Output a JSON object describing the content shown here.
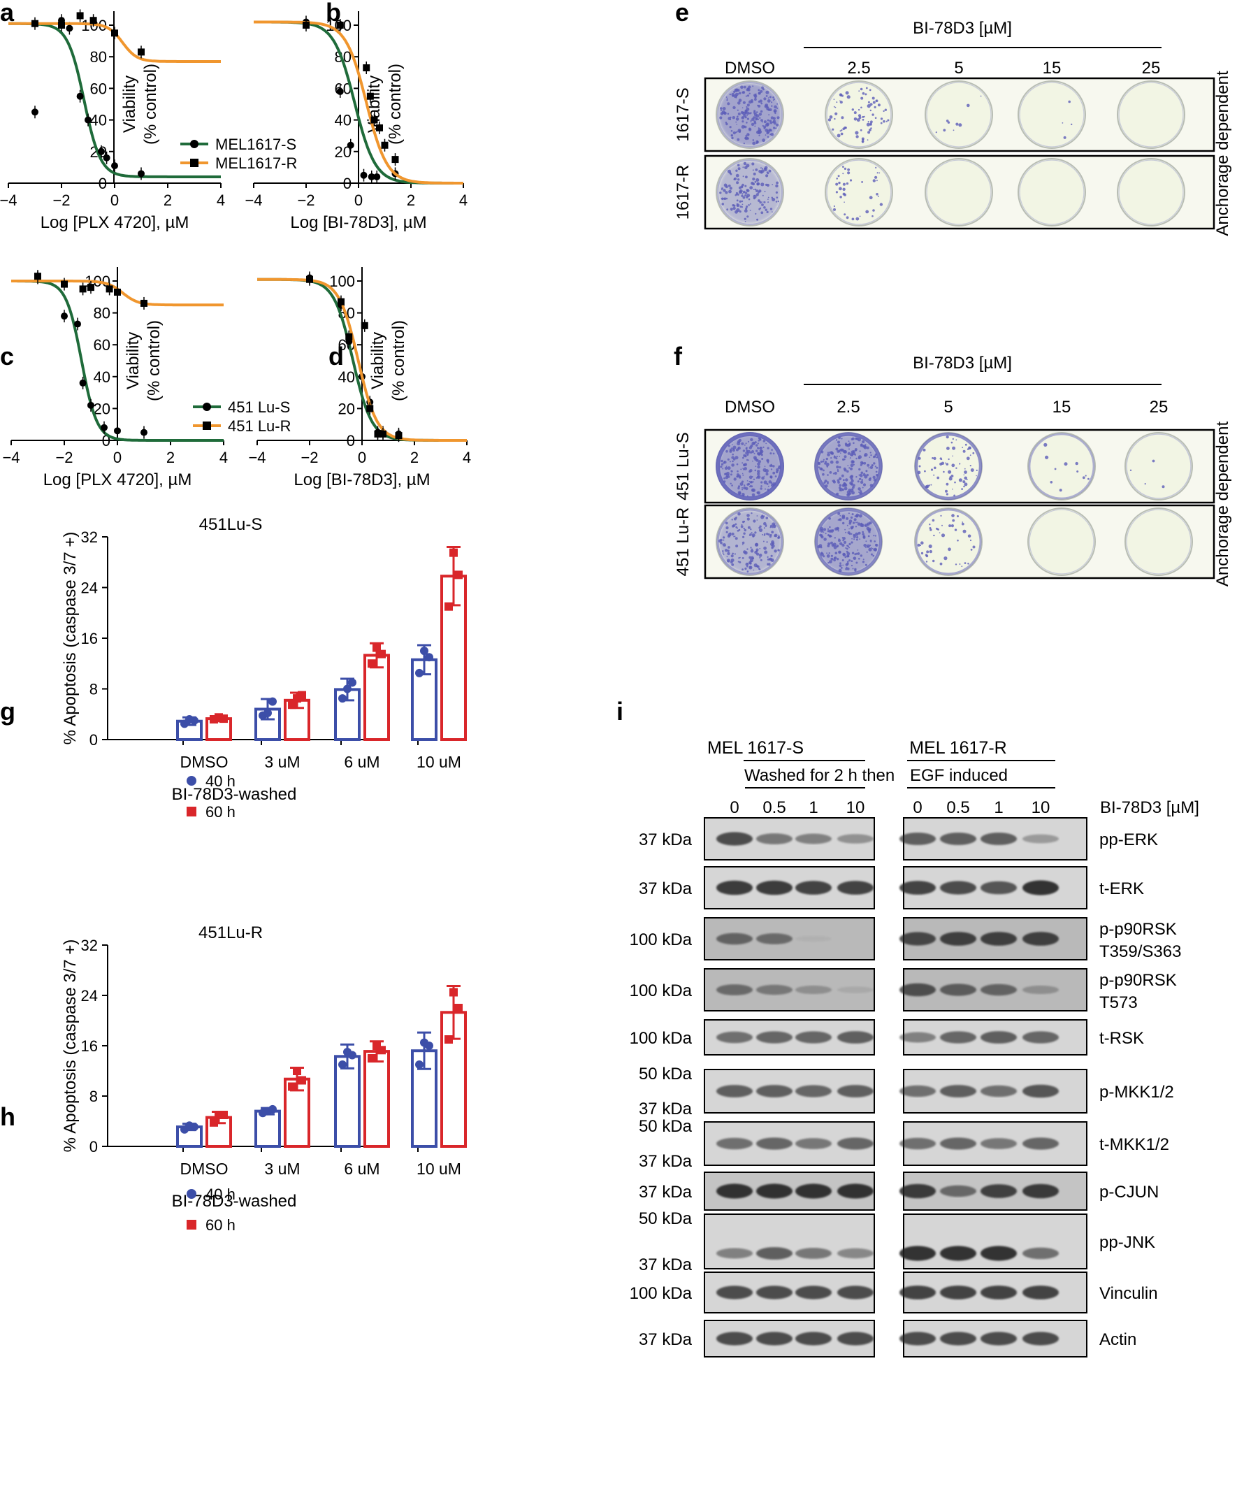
{
  "panel_letters": {
    "a": "a",
    "b": "b",
    "c": "c",
    "d": "d",
    "e": "e",
    "f": "f",
    "g": "g",
    "h": "h",
    "i": "i"
  },
  "colors": {
    "green": "#1f6b3a",
    "orange": "#f0962e",
    "blue": "#3c4ea8",
    "red": "#d9262a",
    "crystal": "#5b5cb8",
    "western": "#222222"
  },
  "chart_data": [
    {
      "id": "a",
      "type": "line",
      "xlabel": "Log [PLX 4720], µM",
      "ylabel_1": "Viability",
      "ylabel_2": "(% control)",
      "xlim": [
        -4,
        4
      ],
      "ylim": [
        0,
        100
      ],
      "xticks": [
        "−4",
        "−2",
        "0",
        "2",
        "4"
      ],
      "yticks": [
        "0",
        "20",
        "40",
        "60",
        "80",
        "100"
      ],
      "series": [
        {
          "name": "MEL1617-S",
          "color": "green",
          "marker": "circle",
          "curve": {
            "top": 101,
            "bottom": 4,
            "ec50": -1.15,
            "hill": 1.4
          },
          "points": [
            [
              -3,
              45
            ],
            [
              -2,
              103
            ],
            [
              -1.7,
              98
            ],
            [
              -1.3,
              55
            ],
            [
              -1.0,
              40
            ],
            [
              -0.5,
              20
            ],
            [
              -0.3,
              16
            ],
            [
              0,
              11
            ],
            [
              1,
              6
            ]
          ]
        },
        {
          "name": "MEL1617-R",
          "color": "orange",
          "marker": "square",
          "curve": {
            "top": 101,
            "bottom": 77,
            "ec50": 0.3,
            "hill": 1.6
          },
          "points": [
            [
              -3,
              101
            ],
            [
              -2,
              100
            ],
            [
              -1.3,
              106
            ],
            [
              -0.8,
              103
            ],
            [
              0,
              95
            ],
            [
              1,
              83
            ]
          ]
        }
      ]
    },
    {
      "id": "b",
      "type": "line",
      "xlabel": "Log [BI-78D3], µM",
      "ylabel_1": "Viability",
      "ylabel_2": "(% control)",
      "xlim": [
        -4,
        4
      ],
      "ylim": [
        0,
        100
      ],
      "xticks": [
        "−4",
        "−2",
        "0",
        "2",
        "4"
      ],
      "yticks": [
        "0",
        "20",
        "40",
        "60",
        "80",
        "100"
      ],
      "series": [
        {
          "name": "MEL1617-S",
          "color": "green",
          "marker": "circle",
          "curve": {
            "top": 102,
            "bottom": 0,
            "ec50": -0.15,
            "hill": 1.1
          },
          "points": [
            [
              -2,
              102
            ],
            [
              -0.7,
              58
            ],
            [
              -0.3,
              24
            ],
            [
              0.2,
              5
            ],
            [
              0.5,
              4
            ],
            [
              0.7,
              4
            ],
            [
              1.4,
              6
            ]
          ]
        },
        {
          "name": "MEL1617-R",
          "color": "orange",
          "marker": "square",
          "curve": {
            "top": 102,
            "bottom": 0,
            "ec50": 0.3,
            "hill": 1.1
          },
          "points": [
            [
              -2,
              100
            ],
            [
              -0.7,
              100
            ],
            [
              0.3,
              73
            ],
            [
              0.45,
              55
            ],
            [
              0.6,
              40
            ],
            [
              0.8,
              35
            ],
            [
              1.0,
              24
            ],
            [
              1.4,
              15
            ]
          ]
        }
      ]
    },
    {
      "id": "c",
      "type": "line",
      "xlabel": "Log [PLX 4720], µM",
      "ylabel_1": "Viability",
      "ylabel_2": "(% control)",
      "xlim": [
        -4,
        4
      ],
      "ylim": [
        0,
        100
      ],
      "xticks": [
        "−4",
        "−2",
        "0",
        "2",
        "4"
      ],
      "yticks": [
        "0",
        "20",
        "40",
        "60",
        "80",
        "100"
      ],
      "series": [
        {
          "name": "451 Lu-S",
          "color": "green",
          "marker": "circle",
          "curve": {
            "top": 100,
            "bottom": 0,
            "ec50": -1.35,
            "hill": 1.5
          },
          "points": [
            [
              -3,
              102
            ],
            [
              -2,
              78
            ],
            [
              -1.5,
              73
            ],
            [
              -1.3,
              36
            ],
            [
              -1.0,
              22
            ],
            [
              -0.5,
              8
            ],
            [
              0,
              6
            ],
            [
              1,
              5
            ]
          ]
        },
        {
          "name": "451 Lu-R",
          "color": "orange",
          "marker": "square",
          "curve": {
            "top": 100,
            "bottom": 85,
            "ec50": 0.2,
            "hill": 1.5
          },
          "points": [
            [
              -3,
              103
            ],
            [
              -2,
              98
            ],
            [
              -1.3,
              95
            ],
            [
              -1.0,
              96
            ],
            [
              -0.3,
              95
            ],
            [
              0,
              93
            ],
            [
              1,
              86
            ]
          ]
        }
      ]
    },
    {
      "id": "d",
      "type": "line",
      "xlabel": "Log [BI-78D3], µM",
      "ylabel_1": "Viability",
      "ylabel_2": "(% control)",
      "xlim": [
        -4,
        4
      ],
      "ylim": [
        0,
        100
      ],
      "xticks": [
        "−4",
        "−2",
        "0",
        "2",
        "4"
      ],
      "yticks": [
        "0",
        "20",
        "40",
        "60",
        "80",
        "100"
      ],
      "series": [
        {
          "name": "451 Lu-S",
          "color": "green",
          "marker": "circle",
          "curve": {
            "top": 101,
            "bottom": 0,
            "ec50": -0.35,
            "hill": 1.2
          },
          "points": [
            [
              -2,
              102
            ],
            [
              -0.8,
              85
            ],
            [
              -0.5,
              62
            ],
            [
              0,
              40
            ],
            [
              0.3,
              24
            ],
            [
              0.6,
              5
            ],
            [
              0.8,
              5
            ],
            [
              1.4,
              4
            ]
          ]
        },
        {
          "name": "451 Lu-R",
          "color": "orange",
          "marker": "square",
          "curve": {
            "top": 101,
            "bottom": 0,
            "ec50": -0.15,
            "hill": 1.2
          },
          "points": [
            [
              -2,
              101
            ],
            [
              -0.8,
              87
            ],
            [
              -0.5,
              65
            ],
            [
              0.1,
              72
            ],
            [
              0.3,
              20
            ],
            [
              0.6,
              4
            ],
            [
              0.8,
              4
            ],
            [
              1.4,
              3
            ]
          ]
        }
      ]
    },
    {
      "id": "g",
      "type": "bar",
      "title": "451Lu-S",
      "xlabel": "BI-78D3-washed",
      "ylabel": "% Apoptosis (caspase 3/7 +)",
      "ylim": [
        0,
        32
      ],
      "yticks": [
        "0",
        "8",
        "16",
        "24",
        "32"
      ],
      "categories": [
        "DMSO",
        "3 uM",
        "6 uM",
        "10 uM"
      ],
      "series": [
        {
          "name": "40 h",
          "color": "blue",
          "values": [
            2.9,
            4.8,
            7.9,
            12.6
          ],
          "errors": [
            0.6,
            1.6,
            1.7,
            2.3
          ],
          "points": [
            [
              2.5,
              3.2,
              3.0
            ],
            [
              3.8,
              4.2,
              6.0
            ],
            [
              6.5,
              8.0,
              9.0
            ],
            [
              10.5,
              14.0,
              13.0
            ]
          ]
        },
        {
          "name": "60 h",
          "color": "red",
          "values": [
            3.3,
            6.2,
            13.3,
            25.8
          ],
          "errors": [
            0.4,
            1.2,
            1.9,
            4.6
          ],
          "points": [
            [
              3.2,
              3.5,
              3.3
            ],
            [
              5.5,
              6.5,
              7.0
            ],
            [
              12.0,
              14.5,
              13.5
            ],
            [
              21.0,
              29.5,
              26.0
            ]
          ]
        }
      ]
    },
    {
      "id": "h",
      "type": "bar",
      "title": "451Lu-R",
      "xlabel": "BI-78D3-washed",
      "ylabel": "% Apoptosis (caspase 3/7 +)",
      "ylim": [
        0,
        32
      ],
      "yticks": [
        "0",
        "8",
        "16",
        "24",
        "32"
      ],
      "categories": [
        "DMSO",
        "3 uM",
        "6 uM",
        "10 uM"
      ],
      "series": [
        {
          "name": "40 h",
          "color": "blue",
          "values": [
            3.1,
            5.6,
            14.3,
            15.2
          ],
          "errors": [
            0.5,
            0.5,
            1.9,
            2.9
          ],
          "points": [
            [
              2.7,
              3.3,
              3.1
            ],
            [
              5.3,
              5.6,
              5.9
            ],
            [
              13.0,
              15.0,
              14.5
            ],
            [
              13.0,
              16.5,
              16.0
            ]
          ]
        },
        {
          "name": "60 h",
          "color": "red",
          "values": [
            4.6,
            10.7,
            15.1,
            21.3
          ],
          "errors": [
            0.9,
            1.8,
            1.6,
            4.2
          ],
          "points": [
            [
              3.8,
              5.0,
              5.0
            ],
            [
              9.5,
              12.0,
              10.5
            ],
            [
              14.0,
              16.0,
              15.3
            ],
            [
              17.0,
              24.5,
              22.0
            ]
          ]
        }
      ]
    }
  ],
  "plates": {
    "e": {
      "title": "BI-78D3 [µM]",
      "columns": [
        "DMSO",
        "2.5",
        "5",
        "15",
        "25"
      ],
      "rows": [
        "1617-S",
        "1617-R"
      ],
      "side_label": "Anchorage dependent",
      "density": [
        [
          0.95,
          0.35,
          0.04,
          0.02,
          0.0
        ],
        [
          0.7,
          0.18,
          0.0,
          0.0,
          0.0
        ]
      ],
      "ring": [
        [
          0.2,
          0.1,
          0.05,
          0.05,
          0.05
        ],
        [
          0.2,
          0.1,
          0.05,
          0.05,
          0.05
        ]
      ]
    },
    "f": {
      "title": "BI-78D3 [µM]",
      "columns": [
        "DMSO",
        "2.5",
        "5",
        "15",
        "25"
      ],
      "rows": [
        "451 Lu-S",
        "451 Lu-R"
      ],
      "side_label": "Anchorage dependent",
      "density": [
        [
          0.95,
          0.9,
          0.3,
          0.05,
          0.02
        ],
        [
          0.75,
          0.9,
          0.2,
          0.0,
          0.0
        ]
      ],
      "ring": [
        [
          1.0,
          0.9,
          0.7,
          0.35,
          0.1
        ],
        [
          0.4,
          0.7,
          0.4,
          0.05,
          0.05
        ]
      ]
    }
  },
  "western": {
    "group_S": "MEL 1617-S",
    "group_R": "MEL 1617-R",
    "washed_a": "Washed for 2 h then",
    "washed_b": "EGF induced",
    "doses": [
      "0",
      "0.5",
      "1",
      "10"
    ],
    "dose_label": "BI-78D3 [µM]",
    "blots": [
      {
        "name": "pp-ERK",
        "mw": [
          "37 kDa"
        ],
        "s": [
          0.8,
          0.55,
          0.5,
          0.4
        ],
        "r": [
          0.7,
          0.7,
          0.7,
          0.35
        ]
      },
      {
        "name": "t-ERK",
        "mw": [
          "37 kDa"
        ],
        "s": [
          0.9,
          0.9,
          0.85,
          0.85
        ],
        "r": [
          0.85,
          0.8,
          0.75,
          0.95
        ]
      },
      {
        "name": "p-p90RSK",
        "name2": "T359/S363",
        "mw": [
          "100 kDa"
        ],
        "s": [
          0.6,
          0.55,
          0.05,
          0.0
        ],
        "r": [
          0.8,
          0.85,
          0.85,
          0.85
        ]
      },
      {
        "name": "p-p90RSK",
        "name2": "T573",
        "mw": [
          "100 kDa"
        ],
        "s": [
          0.55,
          0.45,
          0.3,
          0.1
        ],
        "r": [
          0.75,
          0.65,
          0.6,
          0.3
        ]
      },
      {
        "name": "t-RSK",
        "mw": [
          "100 kDa"
        ],
        "s": [
          0.6,
          0.65,
          0.65,
          0.7
        ],
        "r": [
          0.5,
          0.65,
          0.7,
          0.65
        ]
      },
      {
        "name": "p-MKK1/2",
        "mw": [
          "50 kDa",
          "37 kDa"
        ],
        "s": [
          0.7,
          0.7,
          0.65,
          0.7
        ],
        "r": [
          0.6,
          0.7,
          0.6,
          0.75
        ]
      },
      {
        "name": "t-MKK1/2",
        "mw": [
          "50 kDa",
          "37 kDa"
        ],
        "s": [
          0.6,
          0.65,
          0.55,
          0.65
        ],
        "r": [
          0.6,
          0.65,
          0.55,
          0.65
        ]
      },
      {
        "name": "p-CJUN",
        "mw": [
          "37 kDa"
        ],
        "s": [
          0.95,
          0.95,
          0.95,
          0.95
        ],
        "r": [
          0.9,
          0.6,
          0.85,
          0.9
        ]
      },
      {
        "name": "pp-JNK",
        "mw": [
          "50 kDa",
          "37 kDa"
        ],
        "s": [
          0.5,
          0.7,
          0.55,
          0.45
        ],
        "r": [
          0.95,
          0.95,
          0.95,
          0.6
        ]
      },
      {
        "name": "Vinculin",
        "mw": [
          "100 kDa"
        ],
        "s": [
          0.8,
          0.8,
          0.8,
          0.8
        ],
        "r": [
          0.85,
          0.85,
          0.85,
          0.85
        ]
      },
      {
        "name": "Actin",
        "mw": [
          "37 kDa"
        ],
        "s": [
          0.8,
          0.8,
          0.8,
          0.8
        ],
        "r": [
          0.8,
          0.8,
          0.8,
          0.8
        ]
      }
    ]
  }
}
